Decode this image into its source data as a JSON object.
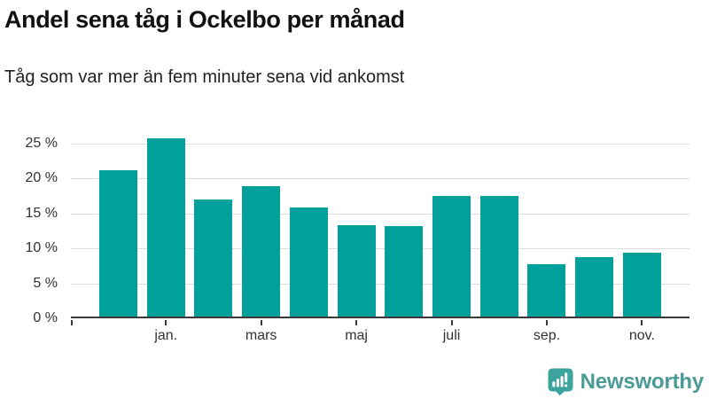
{
  "header": {
    "title": "Andel sena tåg i Ockelbo per månad",
    "subtitle": "Tåg som var mer än fem minuter sena vid ankomst"
  },
  "chart_data": {
    "type": "bar",
    "title": "Andel sena tåg i Ockelbo per månad",
    "subtitle": "Tåg som var mer än fem minuter sena vid ankomst",
    "categories": [
      "",
      "jan.",
      "",
      "mars",
      "",
      "maj",
      "",
      "juli",
      "",
      "sep.",
      "",
      "nov."
    ],
    "values": [
      20.9,
      25.5,
      16.7,
      18.6,
      15.6,
      13.1,
      12.9,
      17.3,
      17.2,
      7.5,
      8.5,
      9.2
    ],
    "unit": "%",
    "xlabel": "",
    "ylabel": "",
    "ylim": [
      0,
      25
    ],
    "y_ticks": [
      0,
      5,
      10,
      15,
      20,
      25
    ],
    "y_tick_labels": [
      "0 %",
      "5 %",
      "10 %",
      "15 %",
      "20 %",
      "25 %"
    ],
    "grid": true,
    "legend": false,
    "bar_color": "#00a19a",
    "gridline_color": "#dedede",
    "axis_color": "#3a3a3a",
    "tick_label_color": "#333333"
  },
  "branding": {
    "logo_text": "Newsworthy",
    "logo_text_color": "#4a9a95",
    "logo_icon_color": "#3da39d"
  }
}
